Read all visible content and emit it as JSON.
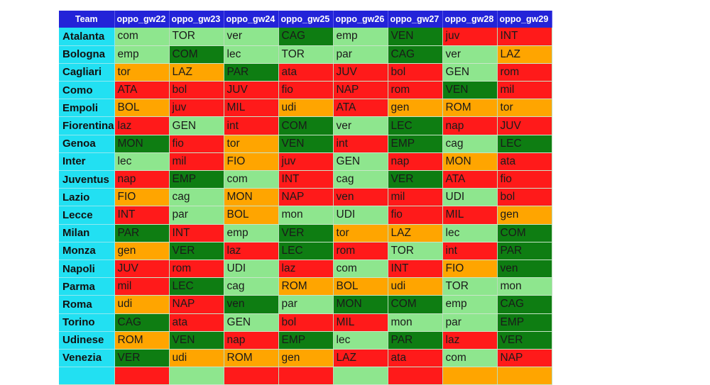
{
  "colors": {
    "header_bg": "#2323d8",
    "team_bg": "#22e0f2",
    "difficulty": {
      "easy": "#8ee68e",
      "good": "#0e7d12",
      "medium": "#ffa500",
      "hard": "#ff1a1a"
    }
  },
  "chart_data": {
    "type": "table",
    "columns": [
      "Team",
      "oppo_gw22",
      "oppo_gw23",
      "oppo_gw24",
      "oppo_gw25",
      "oppo_gw26",
      "oppo_gw27",
      "oppo_gw28",
      "oppo_gw29"
    ],
    "rows": [
      {
        "team": "Atalanta",
        "cells": [
          [
            "com",
            "easy"
          ],
          [
            "TOR",
            "easy"
          ],
          [
            "ver",
            "easy"
          ],
          [
            "CAG",
            "good"
          ],
          [
            "emp",
            "easy"
          ],
          [
            "VEN",
            "good"
          ],
          [
            "juv",
            "hard"
          ],
          [
            "INT",
            "hard"
          ]
        ]
      },
      {
        "team": "Bologna",
        "cells": [
          [
            "emp",
            "easy"
          ],
          [
            "COM",
            "good"
          ],
          [
            "lec",
            "easy"
          ],
          [
            "TOR",
            "easy"
          ],
          [
            "par",
            "easy"
          ],
          [
            "CAG",
            "good"
          ],
          [
            "ver",
            "easy"
          ],
          [
            "LAZ",
            "medium"
          ]
        ]
      },
      {
        "team": "Cagliari",
        "cells": [
          [
            "tor",
            "medium"
          ],
          [
            "LAZ",
            "medium"
          ],
          [
            "PAR",
            "good"
          ],
          [
            "ata",
            "hard"
          ],
          [
            "JUV",
            "hard"
          ],
          [
            "bol",
            "hard"
          ],
          [
            "GEN",
            "easy"
          ],
          [
            "rom",
            "hard"
          ]
        ]
      },
      {
        "team": "Como",
        "cells": [
          [
            "ATA",
            "hard"
          ],
          [
            "bol",
            "hard"
          ],
          [
            "JUV",
            "hard"
          ],
          [
            "fio",
            "hard"
          ],
          [
            "NAP",
            "hard"
          ],
          [
            "rom",
            "hard"
          ],
          [
            "VEN",
            "good"
          ],
          [
            "mil",
            "hard"
          ]
        ]
      },
      {
        "team": "Empoli",
        "cells": [
          [
            "BOL",
            "medium"
          ],
          [
            "juv",
            "hard"
          ],
          [
            "MIL",
            "hard"
          ],
          [
            "udi",
            "medium"
          ],
          [
            "ATA",
            "hard"
          ],
          [
            "gen",
            "medium"
          ],
          [
            "ROM",
            "medium"
          ],
          [
            "tor",
            "medium"
          ]
        ]
      },
      {
        "team": "Fiorentina",
        "cells": [
          [
            "laz",
            "hard"
          ],
          [
            "GEN",
            "easy"
          ],
          [
            "int",
            "hard"
          ],
          [
            "COM",
            "good"
          ],
          [
            "ver",
            "easy"
          ],
          [
            "LEC",
            "good"
          ],
          [
            "nap",
            "hard"
          ],
          [
            "JUV",
            "hard"
          ]
        ]
      },
      {
        "team": "Genoa",
        "cells": [
          [
            "MON",
            "good"
          ],
          [
            "fio",
            "hard"
          ],
          [
            "tor",
            "medium"
          ],
          [
            "VEN",
            "good"
          ],
          [
            "int",
            "hard"
          ],
          [
            "EMP",
            "good"
          ],
          [
            "cag",
            "easy"
          ],
          [
            "LEC",
            "good"
          ]
        ]
      },
      {
        "team": "Inter",
        "cells": [
          [
            "lec",
            "easy"
          ],
          [
            "mil",
            "hard"
          ],
          [
            "FIO",
            "medium"
          ],
          [
            "juv",
            "hard"
          ],
          [
            "GEN",
            "easy"
          ],
          [
            "nap",
            "hard"
          ],
          [
            "MON",
            "medium"
          ],
          [
            "ata",
            "hard"
          ]
        ]
      },
      {
        "team": "Juventus",
        "cells": [
          [
            "nap",
            "hard"
          ],
          [
            "EMP",
            "good"
          ],
          [
            "com",
            "easy"
          ],
          [
            "INT",
            "hard"
          ],
          [
            "cag",
            "easy"
          ],
          [
            "VER",
            "good"
          ],
          [
            "ATA",
            "hard"
          ],
          [
            "fio",
            "hard"
          ]
        ]
      },
      {
        "team": "Lazio",
        "cells": [
          [
            "FIO",
            "medium"
          ],
          [
            "cag",
            "easy"
          ],
          [
            "MON",
            "medium"
          ],
          [
            "NAP",
            "hard"
          ],
          [
            "ven",
            "hard"
          ],
          [
            "mil",
            "hard"
          ],
          [
            "UDI",
            "easy"
          ],
          [
            "bol",
            "hard"
          ]
        ]
      },
      {
        "team": "Lecce",
        "cells": [
          [
            "INT",
            "hard"
          ],
          [
            "par",
            "easy"
          ],
          [
            "BOL",
            "medium"
          ],
          [
            "mon",
            "easy"
          ],
          [
            "UDI",
            "easy"
          ],
          [
            "fio",
            "hard"
          ],
          [
            "MIL",
            "hard"
          ],
          [
            "gen",
            "medium"
          ]
        ]
      },
      {
        "team": "Milan",
        "cells": [
          [
            "PAR",
            "good"
          ],
          [
            "INT",
            "hard"
          ],
          [
            "emp",
            "easy"
          ],
          [
            "VER",
            "good"
          ],
          [
            "tor",
            "medium"
          ],
          [
            "LAZ",
            "medium"
          ],
          [
            "lec",
            "easy"
          ],
          [
            "COM",
            "good"
          ]
        ]
      },
      {
        "team": "Monza",
        "cells": [
          [
            "gen",
            "medium"
          ],
          [
            "VER",
            "good"
          ],
          [
            "laz",
            "hard"
          ],
          [
            "LEC",
            "good"
          ],
          [
            "rom",
            "hard"
          ],
          [
            "TOR",
            "easy"
          ],
          [
            "int",
            "hard"
          ],
          [
            "PAR",
            "good"
          ]
        ]
      },
      {
        "team": "Napoli",
        "cells": [
          [
            "JUV",
            "hard"
          ],
          [
            "rom",
            "hard"
          ],
          [
            "UDI",
            "easy"
          ],
          [
            "laz",
            "hard"
          ],
          [
            "com",
            "easy"
          ],
          [
            "INT",
            "hard"
          ],
          [
            "FIO",
            "medium"
          ],
          [
            "ven",
            "good"
          ]
        ]
      },
      {
        "team": "Parma",
        "cells": [
          [
            "mil",
            "hard"
          ],
          [
            "LEC",
            "good"
          ],
          [
            "cag",
            "easy"
          ],
          [
            "ROM",
            "medium"
          ],
          [
            "BOL",
            "medium"
          ],
          [
            "udi",
            "medium"
          ],
          [
            "TOR",
            "easy"
          ],
          [
            "mon",
            "easy"
          ]
        ]
      },
      {
        "team": "Roma",
        "cells": [
          [
            "udi",
            "medium"
          ],
          [
            "NAP",
            "hard"
          ],
          [
            "ven",
            "good"
          ],
          [
            "par",
            "easy"
          ],
          [
            "MON",
            "good"
          ],
          [
            "COM",
            "good"
          ],
          [
            "emp",
            "easy"
          ],
          [
            "CAG",
            "good"
          ]
        ]
      },
      {
        "team": "Torino",
        "cells": [
          [
            "CAG",
            "good"
          ],
          [
            "ata",
            "hard"
          ],
          [
            "GEN",
            "easy"
          ],
          [
            "bol",
            "hard"
          ],
          [
            "MIL",
            "hard"
          ],
          [
            "mon",
            "easy"
          ],
          [
            "par",
            "easy"
          ],
          [
            "EMP",
            "good"
          ]
        ]
      },
      {
        "team": "Udinese",
        "cells": [
          [
            "ROM",
            "medium"
          ],
          [
            "VEN",
            "good"
          ],
          [
            "nap",
            "hard"
          ],
          [
            "EMP",
            "good"
          ],
          [
            "lec",
            "easy"
          ],
          [
            "PAR",
            "good"
          ],
          [
            "laz",
            "hard"
          ],
          [
            "VER",
            "good"
          ]
        ]
      },
      {
        "team": "Venezia",
        "cells": [
          [
            "VER",
            "good"
          ],
          [
            "udi",
            "medium"
          ],
          [
            "ROM",
            "medium"
          ],
          [
            "gen",
            "medium"
          ],
          [
            "LAZ",
            "hard"
          ],
          [
            "ata",
            "hard"
          ],
          [
            "com",
            "easy"
          ],
          [
            "NAP",
            "hard"
          ]
        ]
      }
    ]
  }
}
